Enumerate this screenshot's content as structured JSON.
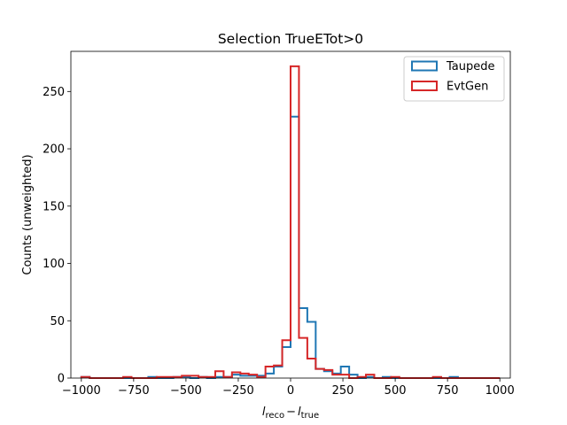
{
  "chart_data": {
    "type": "histogram-step",
    "title": "Selection TrueETot>0",
    "ylabel": "Counts (unweighted)",
    "xlabel_main": "l",
    "xlabel_sub1": "reco",
    "xlabel_minus": "−",
    "xlabel_sub2": "true",
    "xlim": [
      -1050,
      1050
    ],
    "ylim": [
      0,
      285
    ],
    "xticks": [
      -1000,
      -750,
      -500,
      -250,
      0,
      250,
      500,
      750,
      1000
    ],
    "xtick_labels": [
      "−1000",
      "−750",
      "−500",
      "−250",
      "0",
      "250",
      "500",
      "750",
      "1000"
    ],
    "yticks": [
      0,
      50,
      100,
      150,
      200,
      250
    ],
    "ytick_labels": [
      "0",
      "50",
      "100",
      "150",
      "200",
      "250"
    ],
    "bin_edges": [
      -1000,
      -960,
      -920,
      -880,
      -840,
      -800,
      -760,
      -720,
      -680,
      -640,
      -600,
      -560,
      -520,
      -480,
      -440,
      -400,
      -360,
      -320,
      -280,
      -240,
      -200,
      -160,
      -120,
      -80,
      -40,
      0,
      40,
      80,
      120,
      160,
      200,
      240,
      280,
      320,
      360,
      400,
      440,
      480,
      520,
      560,
      600,
      640,
      680,
      720,
      760,
      800,
      840,
      880,
      920,
      960,
      1000
    ],
    "legend_position": "upper right",
    "series": [
      {
        "name": "Taupede",
        "color": "#1f77b4",
        "values": [
          1,
          0,
          0,
          0,
          0,
          0,
          0,
          0,
          1,
          0,
          0,
          1,
          1,
          0,
          1,
          0,
          1,
          1,
          3,
          2,
          2,
          2,
          4,
          10,
          27,
          228,
          61,
          49,
          8,
          6,
          4,
          10,
          3,
          0,
          1,
          0,
          1,
          0,
          0,
          0,
          0,
          0,
          0,
          0,
          1,
          0,
          0,
          0,
          0,
          0
        ]
      },
      {
        "name": "EvtGen",
        "color": "#d62728",
        "values": [
          1,
          0,
          0,
          0,
          0,
          1,
          0,
          0,
          0,
          1,
          1,
          1,
          2,
          2,
          1,
          1,
          6,
          1,
          5,
          4,
          3,
          1,
          10,
          11,
          33,
          272,
          35,
          17,
          8,
          7,
          3,
          3,
          0,
          1,
          3,
          0,
          0,
          1,
          0,
          0,
          0,
          0,
          1,
          0,
          0,
          0,
          0,
          0,
          0,
          0
        ]
      }
    ]
  }
}
